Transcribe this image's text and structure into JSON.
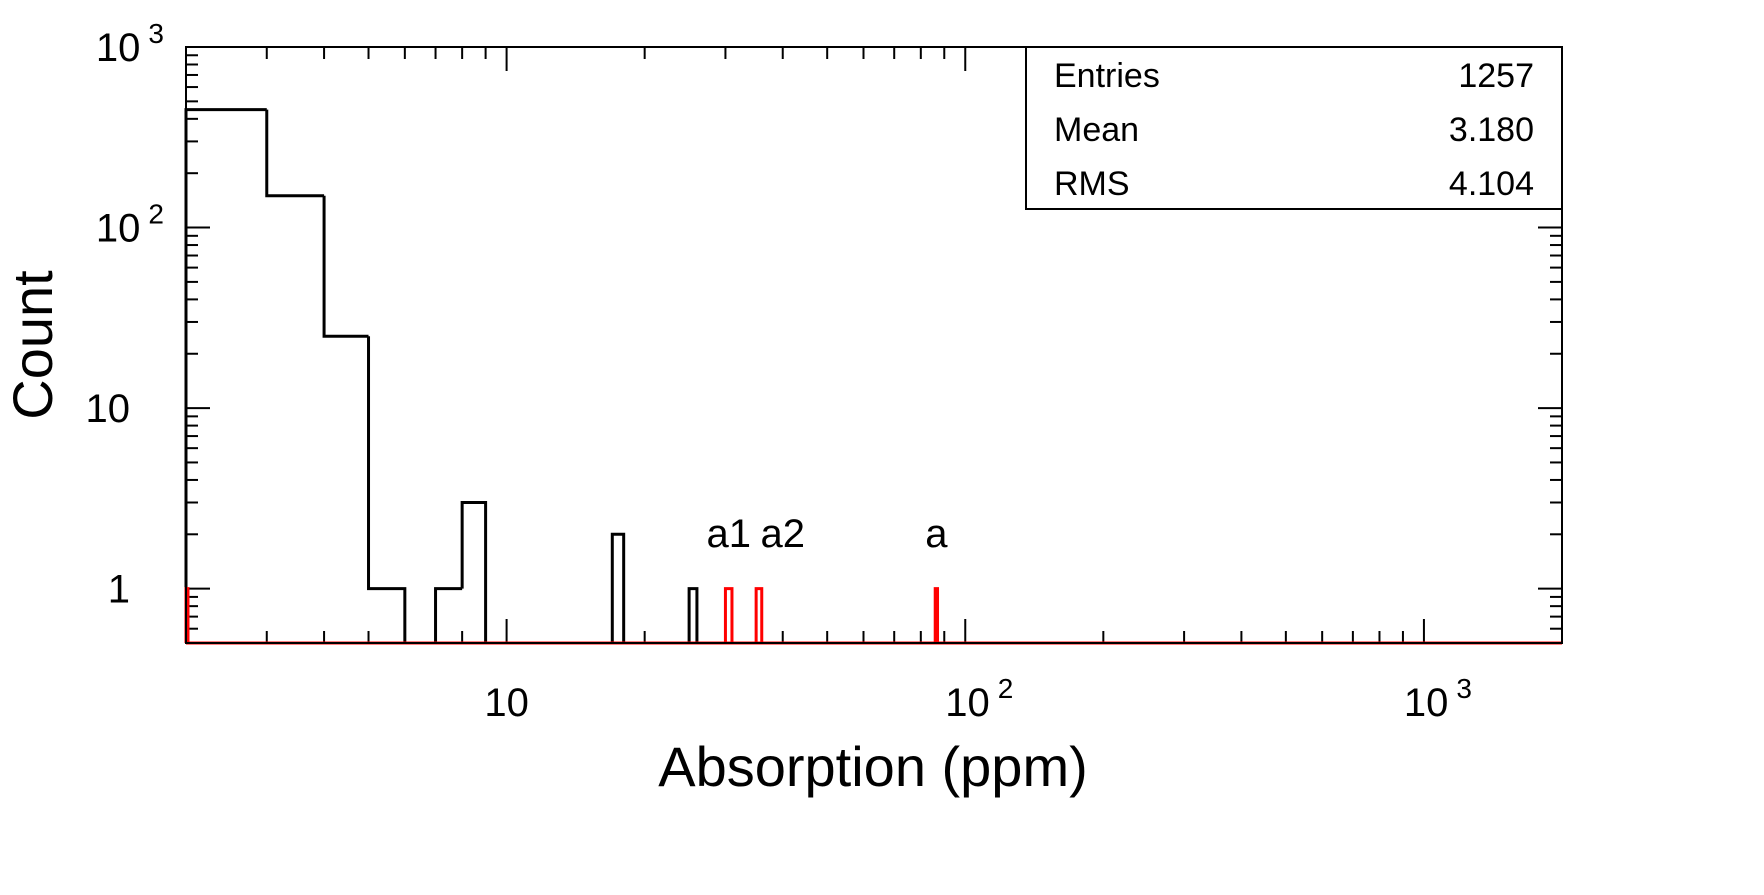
{
  "chart_data": {
    "type": "histogram",
    "title": "",
    "xlabel": "Absorption (ppm)",
    "ylabel": "Count",
    "x_scale": "log",
    "y_scale": "log",
    "xlim": [
      2,
      2000
    ],
    "ylim": [
      0.5,
      1000
    ],
    "grid": false,
    "x_ticks": [
      {
        "value": 10,
        "base": "10",
        "exp": ""
      },
      {
        "value": 100,
        "base": "10",
        "exp": "2"
      },
      {
        "value": 1000,
        "base": "10",
        "exp": "3"
      }
    ],
    "y_ticks": [
      {
        "value": 1,
        "base": "1",
        "exp": ""
      },
      {
        "value": 10,
        "base": "10",
        "exp": ""
      },
      {
        "value": 100,
        "base": "10",
        "exp": "2"
      },
      {
        "value": 1000,
        "base": "10",
        "exp": "3"
      }
    ],
    "series": [
      {
        "color": "#000000",
        "bins": [
          {
            "x0": 2,
            "x1": 3,
            "count": 450
          },
          {
            "x0": 3,
            "x1": 4,
            "count": 150
          },
          {
            "x0": 4,
            "x1": 5,
            "count": 25
          },
          {
            "x0": 5,
            "x1": 6,
            "count": 1
          },
          {
            "x0": 7,
            "x1": 8,
            "count": 1
          },
          {
            "x0": 8,
            "x1": 9,
            "count": 3
          },
          {
            "x0": 17,
            "x1": 18,
            "count": 2
          },
          {
            "x0": 25,
            "x1": 26,
            "count": 1
          }
        ]
      },
      {
        "color": "#ff0000",
        "bins": [
          {
            "x0": 2,
            "x1": 2.02,
            "count": 1
          },
          {
            "x0": 30,
            "x1": 31,
            "count": 1
          },
          {
            "x0": 35,
            "x1": 36,
            "count": 1
          },
          {
            "x0": 86,
            "x1": 87,
            "count": 1
          }
        ]
      }
    ],
    "annotations": [
      {
        "text": "a1",
        "x": 30.5,
        "y": 1.7
      },
      {
        "text": "a2",
        "x": 40,
        "y": 1.7
      },
      {
        "text": "a",
        "x": 86.5,
        "y": 1.7
      }
    ],
    "stats_box": {
      "position": "top-right",
      "rows": [
        {
          "label": "Entries",
          "value": "1257"
        },
        {
          "label": "Mean",
          "value": "3.180"
        },
        {
          "label": "RMS",
          "value": "4.104"
        }
      ]
    }
  }
}
